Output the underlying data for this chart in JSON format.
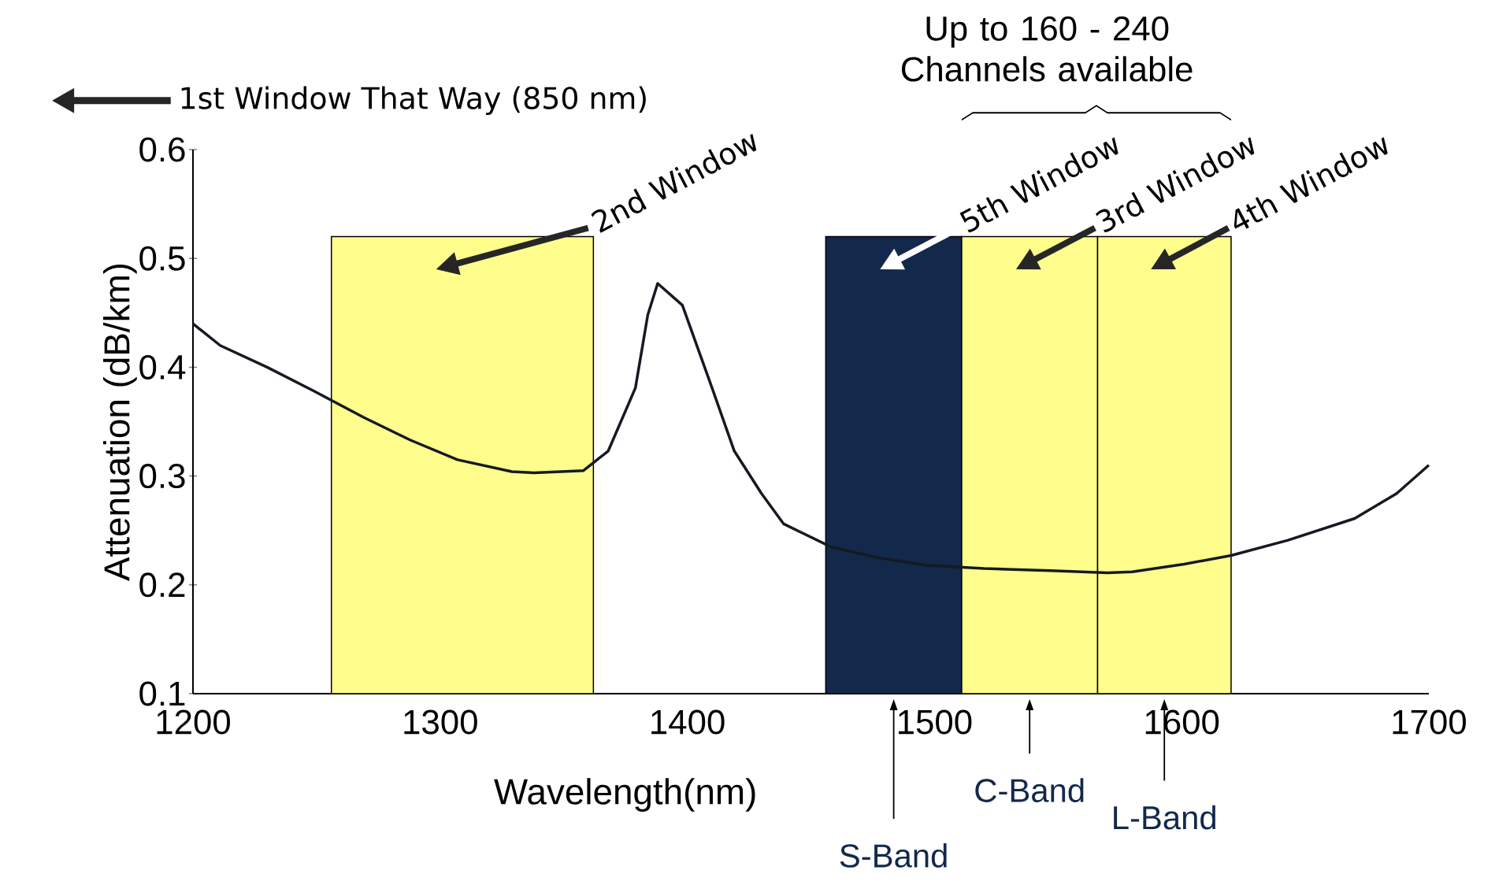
{
  "chart_data": {
    "type": "line",
    "xlabel": "Wavelength(nm)",
    "ylabel": "Attenuation (dB/km)",
    "x": [
      1200,
      1211,
      1230,
      1249,
      1269,
      1288,
      1307,
      1329,
      1338,
      1358,
      1368,
      1379,
      1384,
      1388,
      1398,
      1410,
      1419,
      1430,
      1439,
      1458,
      1477,
      1497,
      1520,
      1547,
      1570,
      1580,
      1601,
      1620,
      1643,
      1670,
      1687,
      1700
    ],
    "series": [
      {
        "color": "#151a22",
        "values": [
          0.44,
          0.42,
          0.4,
          0.378,
          0.354,
          0.333,
          0.315,
          0.304,
          0.303,
          0.305,
          0.323,
          0.381,
          0.448,
          0.477,
          0.457,
          0.381,
          0.323,
          0.284,
          0.256,
          0.235,
          0.225,
          0.218,
          0.215,
          0.213,
          0.211,
          0.212,
          0.219,
          0.227,
          0.241,
          0.261,
          0.284,
          0.31
        ]
      }
    ],
    "xlim": [
      1200,
      1700
    ],
    "ylim": [
      0.1,
      0.6
    ],
    "xticks": [
      1200,
      1300,
      1400,
      1500,
      1600,
      1700
    ],
    "yticks": [
      0.1,
      0.2,
      0.3,
      0.4,
      0.5,
      0.6
    ],
    "bands": [
      {
        "axis": "x",
        "from": 1256,
        "to": 1362,
        "label": "2nd Window",
        "color": "#fffe8c"
      },
      {
        "axis": "x",
        "from": 1456,
        "to": 1511,
        "label": "5th Window",
        "color": "#13294b"
      },
      {
        "axis": "x",
        "from": 1511,
        "to": 1566,
        "label": "3rd Window",
        "color": "#fffe8c"
      },
      {
        "axis": "x",
        "from": 1566,
        "to": 1620,
        "label": "4th Window",
        "color": "#fffe8c"
      }
    ],
    "annotations": [
      "1st Window That Way (850 nm)",
      "Up to 160 - 240 Channels available",
      "S-Band",
      "C-Band",
      "L-Band"
    ]
  }
}
